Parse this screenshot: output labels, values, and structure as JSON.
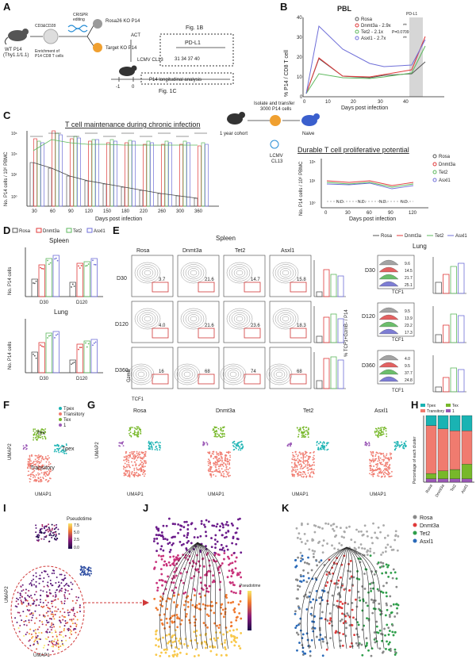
{
  "colors": {
    "rosa": "#555555",
    "dnmt3a": "#e03a3a",
    "tet2": "#5cb85c",
    "asxl1": "#6f6fd8",
    "tpex": "#1ab3b3",
    "transitory": "#f07b6f",
    "tex": "#77b82a",
    "one": "#9b59b6"
  },
  "panel_labels": [
    "A",
    "B",
    "C",
    "D",
    "E",
    "F",
    "G",
    "H",
    "I",
    "J",
    "K"
  ],
  "panelA": {
    "mouse_label": "WT P14",
    "mouse_sub": "(Thy1.1/1.1)",
    "stim": "CD3&CD28\nstim.",
    "enrich": "Enrichment of\nP14 CD8 T cells",
    "crispr": "CRISPR\nediting",
    "rosa_ko": "Rosa26 KO P14",
    "target_ko": "Target KO P14",
    "act": "ACT",
    "lcmv": "LCMV CL13",
    "timeline_left": "-1",
    "timeline_zero": "0",
    "fig1b": "Fig. 1B",
    "pdl1": "PD-L1",
    "days": "31 34 37 40",
    "longitudinal": "P14 longitudinal analysis",
    "fig1c": "Fig. 1C"
  },
  "panelB": {
    "title": "PBL",
    "ylabel": "% P14 / CD8 T cell",
    "xlabel": "Days post infection",
    "pdl1": "PD-L1",
    "legend": [
      "Rosa",
      "Dnmt3a - 2.9x",
      "Tet2 - 2.1x",
      "Asxl1 - 2.7x"
    ],
    "legend_sig": [
      "",
      "**",
      "P=0.0709",
      "**"
    ]
  },
  "panelC": {
    "title": "T cell maintenance during chronic infection",
    "ylabel": "No. P14 cells / 10⁶ PBMC",
    "xlabel": "Days post infection",
    "xticks": [
      "30",
      "60",
      "90",
      "120",
      "150",
      "180",
      "220",
      "260",
      "300",
      "360"
    ],
    "cohort": "1 year cohort",
    "isolate": "Isolate and transfer\n3000 P14 cells",
    "naive": "Naive",
    "lcmv": "LCMV\nCL13",
    "right_title": "Durable T cell proliferative potential",
    "right_ylabel": "No. P14 cells / 10⁶ PBMC",
    "right_xlabel": "Days post infection",
    "right_xticks": [
      "0",
      "30",
      "60",
      "90",
      "120"
    ],
    "nd": "N.D.",
    "legend": [
      "Rosa",
      "Dnmt3a",
      "Tet2",
      "Asxl1"
    ]
  },
  "panelD": {
    "legend": [
      "Rosa",
      "Dnmt3a",
      "Tet2",
      "Asxl1"
    ],
    "spleen": "Spleen",
    "lung": "Lung",
    "ylabel": "No. P14 cells",
    "xticks": [
      "D30",
      "D120"
    ]
  },
  "panelE": {
    "spleen": "Spleen",
    "lung": "Lung",
    "cols": [
      "Rosa",
      "Dnmt3a",
      "Tet2",
      "Asxl1"
    ],
    "rows": [
      "D30",
      "D120",
      "D360"
    ],
    "values": [
      [
        "3.7",
        "21.6",
        "14.7",
        "15.8"
      ],
      [
        "4.0",
        "21.6",
        "23.6",
        "18.3"
      ],
      [
        "16",
        "68",
        "74",
        "68"
      ]
    ],
    "xaxis": "TCF1",
    "yaxis": "GzmB",
    "bar_ylabel": "% TCF1+GzmB- / P14",
    "hist_ylabel": "% MAX",
    "hist_values": [
      [
        "9.6",
        "14.5",
        "21.7",
        "25.1"
      ],
      [
        "9.5",
        "13.9",
        "23.2",
        "17.3"
      ],
      [
        "4.0",
        "9.5",
        "37.7",
        "24.8"
      ]
    ],
    "lung_bar_ylabel": "% TCF1+ / P14",
    "legend": [
      "Rosa",
      "Dnmt3a",
      "Tet2",
      "Asxl1"
    ]
  },
  "panelF": {
    "legend": [
      "Tpex",
      "Transitory",
      "Tex",
      "1"
    ],
    "tex": "Tex",
    "tpex": "Tpex",
    "transitory": "Transitory",
    "x": "UMAP1",
    "y": "UMAP2"
  },
  "panelG": {
    "titles": [
      "Rosa",
      "Dnmt3a",
      "Tet2",
      "Asxl1"
    ],
    "x": "UMAP1",
    "y": "UMAP2"
  },
  "panelH": {
    "legend": [
      "Tpex",
      "Tex",
      "Transitory",
      "1"
    ],
    "ylabel": "Percentage of each cluster",
    "categories": [
      "Rosa",
      "Dnmt3a",
      "Tet2",
      "Asxl1"
    ],
    "chart_data": {
      "type": "bar",
      "categories": [
        "Rosa",
        "Dnmt3a",
        "Tet2",
        "Asxl1"
      ],
      "series": [
        {
          "name": "1",
          "values": [
            5,
            5,
            5,
            5
          ]
        },
        {
          "name": "Tex",
          "values": [
            8,
            12,
            14,
            22
          ]
        },
        {
          "name": "Transitory",
          "values": [
            72,
            63,
            58,
            50
          ]
        },
        {
          "name": "Tpex",
          "values": [
            15,
            20,
            23,
            23
          ]
        }
      ],
      "ylabel": "Percentage of each cluster"
    }
  },
  "panelI": {
    "x": "UMAP1",
    "y": "UMAP2",
    "pseudotime": "Pseudotime",
    "ticks": [
      "7.5",
      "5.0",
      "2.5",
      "0.0"
    ]
  },
  "panelJ": {
    "pseudotime": "Pseudotime"
  },
  "panelK": {
    "legend": [
      "Rosa",
      "Dnmt3a",
      "Tet2",
      "Asxl1"
    ]
  }
}
